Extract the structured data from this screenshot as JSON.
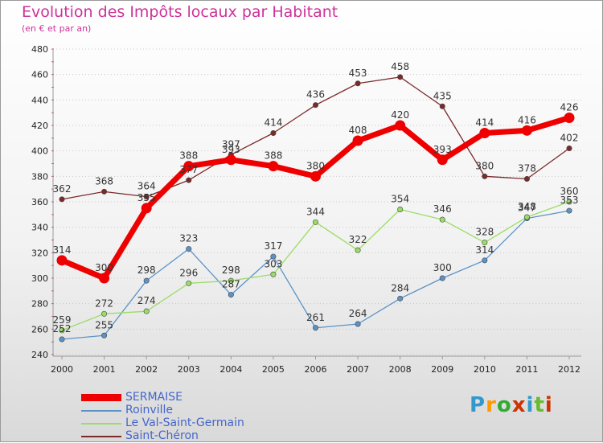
{
  "header": {
    "title": "Evolution des Impôts locaux par Habitant",
    "subtitle": "(en € et par an)"
  },
  "brand": {
    "text": "Proxiti",
    "colors": [
      "#3399cc",
      "#ff9900",
      "#33aa33",
      "#cc3300",
      "#3399cc",
      "#66bb33",
      "#cc3300"
    ]
  },
  "chart_data": {
    "type": "line",
    "x": [
      "2000",
      "2001",
      "2002",
      "2003",
      "2004",
      "2005",
      "2006",
      "2007",
      "2008",
      "2009",
      "2010",
      "2011",
      "2012"
    ],
    "ylim": [
      240,
      480
    ],
    "yticks": [
      240,
      260,
      280,
      300,
      320,
      340,
      360,
      380,
      400,
      420,
      440,
      460,
      480
    ],
    "grid": "horizontal-dotted",
    "legend_position": "bottom-left",
    "series": [
      {
        "name": "Saint-Chéron",
        "color": "#7b2a2a",
        "values": [
          362,
          368,
          364,
          377,
          397,
          414,
          436,
          453,
          458,
          435,
          380,
          378,
          402
        ]
      },
      {
        "name": "Roinville",
        "color": "#5b93c7",
        "values": [
          252,
          255,
          298,
          323,
          287,
          317,
          261,
          264,
          284,
          300,
          314,
          347,
          353
        ]
      },
      {
        "name": "Le Val-Saint-Germain",
        "color": "#99dd66",
        "values": [
          259,
          272,
          274,
          296,
          298,
          303,
          344,
          322,
          354,
          346,
          328,
          348,
          360
        ]
      },
      {
        "name": "SERMAISE",
        "color": "#ee0000",
        "values": [
          314,
          300,
          355,
          388,
          393,
          388,
          380,
          408,
          420,
          393,
          414,
          416,
          426
        ]
      }
    ]
  },
  "legend": {
    "items": [
      {
        "label": "SERMAISE",
        "color": "#ee0000"
      },
      {
        "label": "Roinville",
        "color": "#5b93c7"
      },
      {
        "label": "Le Val-Saint-Germain",
        "color": "#99dd66"
      },
      {
        "label": "Saint-Chéron",
        "color": "#7b2a2a"
      }
    ]
  }
}
